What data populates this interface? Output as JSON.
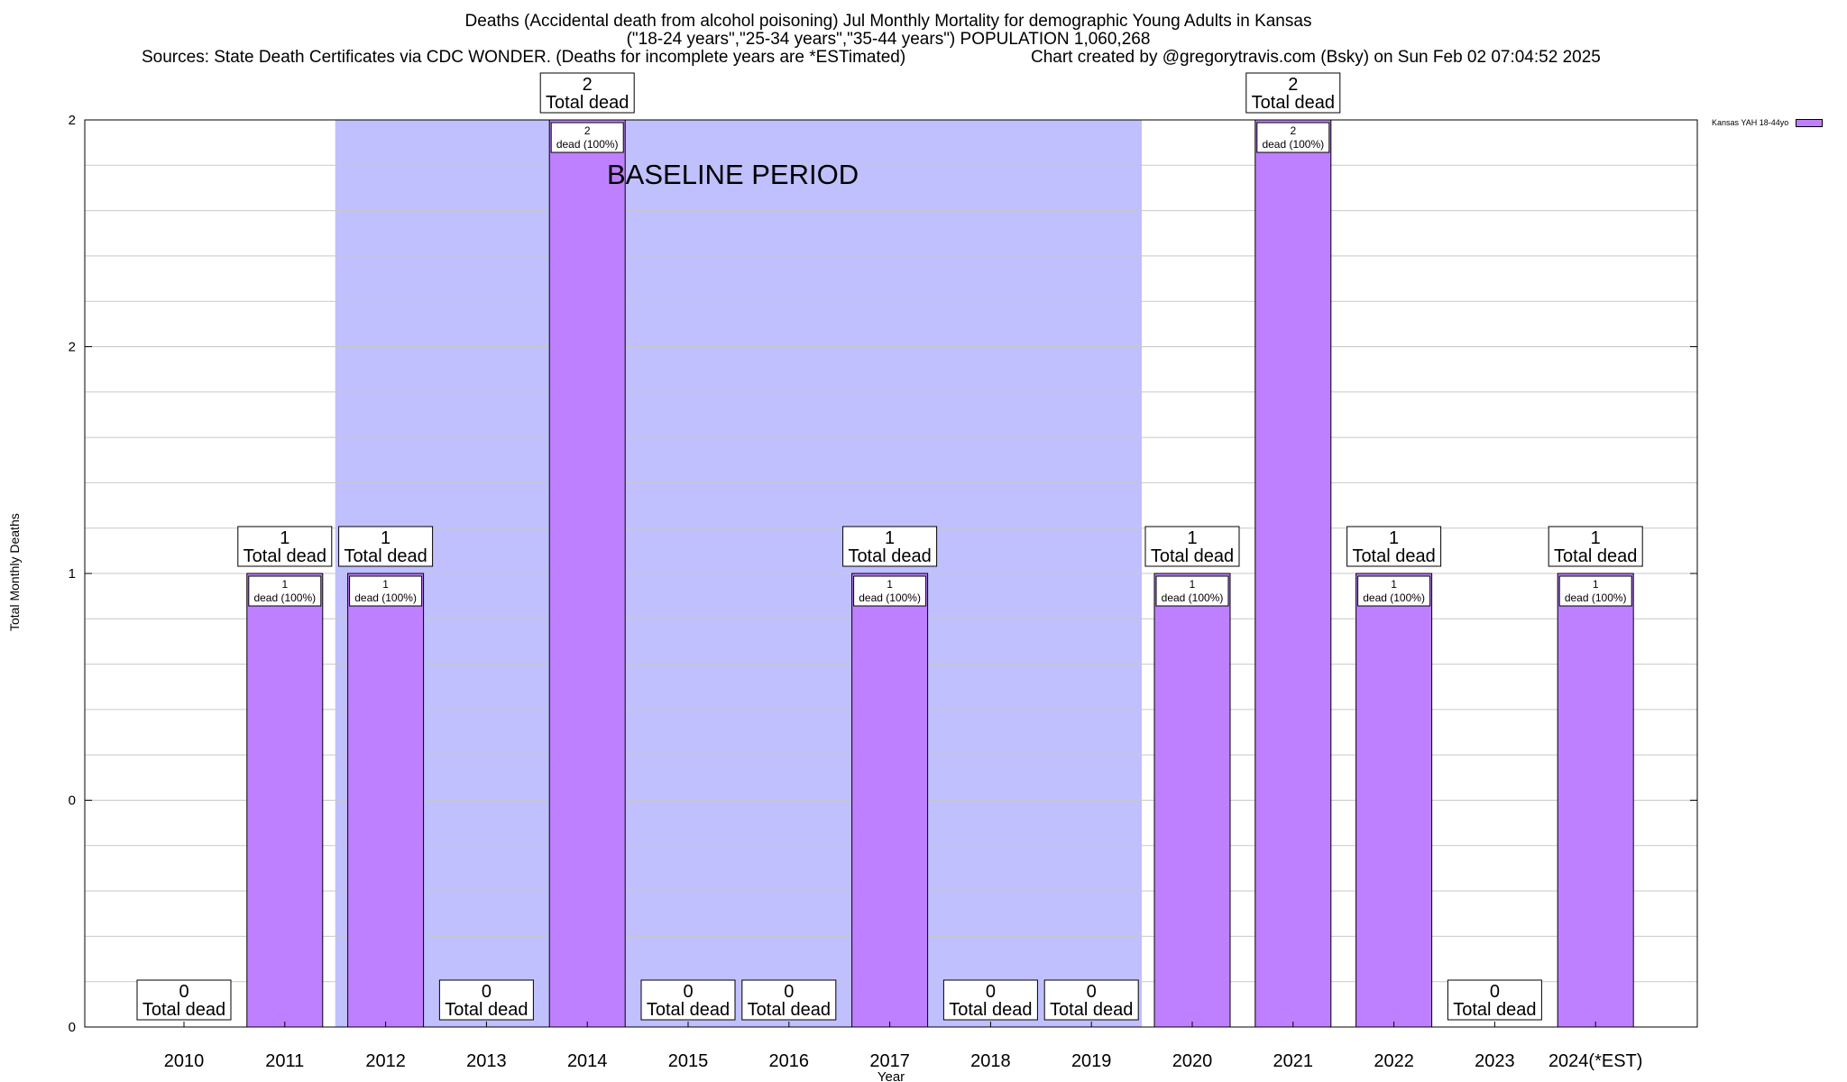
{
  "header": {
    "title_line1": "Deaths (Accidental death from alcohol poisoning) Jul Monthly Mortality for demographic Young Adults in Kansas",
    "title_line2": "(\"18-24 years\",\"25-34 years\",\"35-44 years\") POPULATION 1,060,268",
    "sources": "Sources: State Death Certificates via CDC WONDER. (Deaths for incomplete years are *ESTimated)",
    "credit": "Chart created by @gregorytravis.com (Bsky) on Sun Feb 02 07:04:52 2025"
  },
  "chart_data": {
    "type": "bar",
    "title": "Deaths (Accidental death from alcohol poisoning) Jul Monthly Mortality for demographic Young Adults in Kansas",
    "xlabel": "Year",
    "ylabel": "Total Monthly Deaths",
    "categories": [
      "2010",
      "2011",
      "2012",
      "2013",
      "2014",
      "2015",
      "2016",
      "2017",
      "2018",
      "2019",
      "2020",
      "2021",
      "2022",
      "2023",
      "2024(*EST)"
    ],
    "series": [
      {
        "name": "Kansas YAH 18-44yo",
        "values": [
          0,
          1,
          1,
          0,
          2,
          0,
          0,
          1,
          0,
          0,
          1,
          2,
          1,
          0,
          1
        ]
      }
    ],
    "ylim": [
      0,
      2
    ],
    "yticks": [
      {
        "value": 0,
        "label": "0"
      },
      {
        "value": 0.5,
        "label": "0"
      },
      {
        "value": 1,
        "label": "1"
      },
      {
        "value": 1.5,
        "label": "2"
      },
      {
        "value": 2,
        "label": "2"
      }
    ],
    "total_label_suffix": "Total dead",
    "inner_label_suffix": "dead (100%)",
    "annotation": "BASELINE PERIOD",
    "baseline_period": {
      "from": "2012",
      "to": "2019"
    },
    "legend_position": "top-right",
    "grid": true,
    "colors": {
      "bar": "#bf80ff",
      "baseline": "#c0c0ff"
    }
  }
}
